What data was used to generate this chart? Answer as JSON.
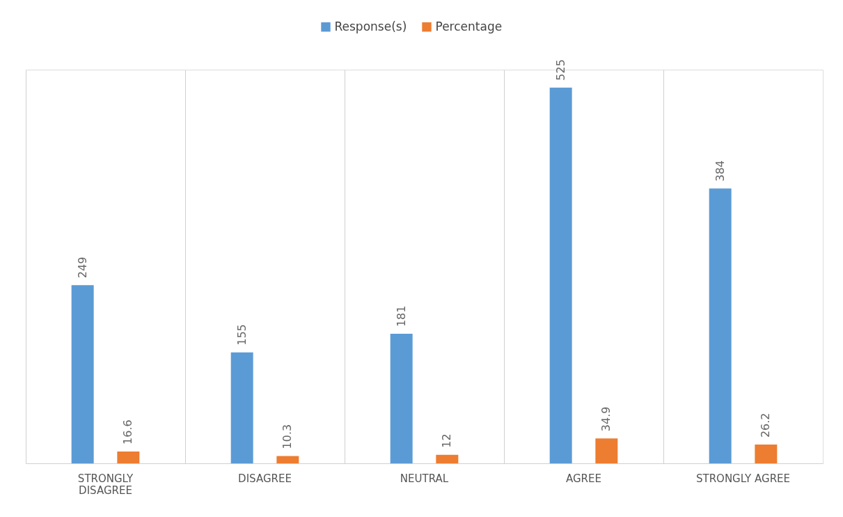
{
  "chart_data": {
    "type": "bar",
    "categories": [
      "STRONGLY DISAGREE",
      "DISAGREE",
      "NEUTRAL",
      "AGREE",
      "STRONGLY AGREE"
    ],
    "series": [
      {
        "name": "Response(s)",
        "color": "#5b9bd5",
        "values": [
          249,
          155,
          181,
          525,
          384
        ]
      },
      {
        "name": "Percentage",
        "color": "#ed7d31",
        "values": [
          16.6,
          10.3,
          12,
          34.9,
          26.2
        ]
      }
    ],
    "data_labels": true,
    "grid": "x",
    "legend": "top"
  }
}
